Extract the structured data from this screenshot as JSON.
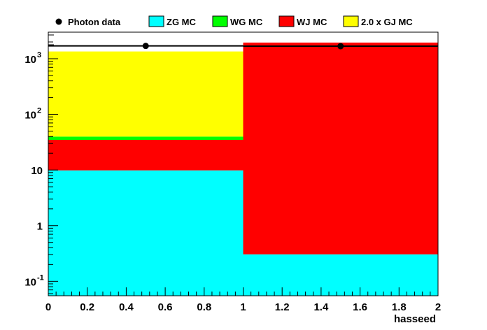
{
  "chart_data": {
    "type": "bar",
    "stacked": true,
    "xlabel": "hasseed",
    "ylabel": "",
    "xlim": [
      0,
      2
    ],
    "ylim": [
      0.055,
      3000
    ],
    "yscale": "log",
    "grid": false,
    "legend_position": "top",
    "bins": [
      [
        0,
        1
      ],
      [
        1,
        2
      ]
    ],
    "x_ticks": [
      "0",
      "0.2",
      "0.4",
      "0.6",
      "0.8",
      "1",
      "1.2",
      "1.4",
      "1.6",
      "1.8",
      "2"
    ],
    "y_ticks": [
      {
        "value": 0.1,
        "base": "10",
        "exp": "-1"
      },
      {
        "value": 1,
        "base": "1",
        "exp": ""
      },
      {
        "value": 10,
        "base": "10",
        "exp": ""
      },
      {
        "value": 100,
        "base": "10",
        "exp": "2"
      },
      {
        "value": 1000,
        "base": "10",
        "exp": "3"
      }
    ],
    "series": [
      {
        "name": "ZG MC",
        "color": "#00ffff",
        "values": [
          9.8,
          0.25
        ]
      },
      {
        "name": "WJ MC",
        "color": "#ff0000",
        "values": [
          25,
          1950
        ]
      },
      {
        "name": "WG MC",
        "color": "#00ff00",
        "values": [
          5,
          0
        ]
      },
      {
        "name": "2.0 x GJ MC",
        "color": "#ffff00",
        "values": [
          1310,
          0
        ]
      }
    ],
    "data_points": {
      "name": "Photon data",
      "x": [
        0.5,
        1.5
      ],
      "y": [
        1700,
        1680
      ]
    },
    "legend_order": [
      "Photon data",
      "ZG MC",
      "WG MC",
      "WJ MC",
      "2.0 x GJ MC"
    ]
  }
}
